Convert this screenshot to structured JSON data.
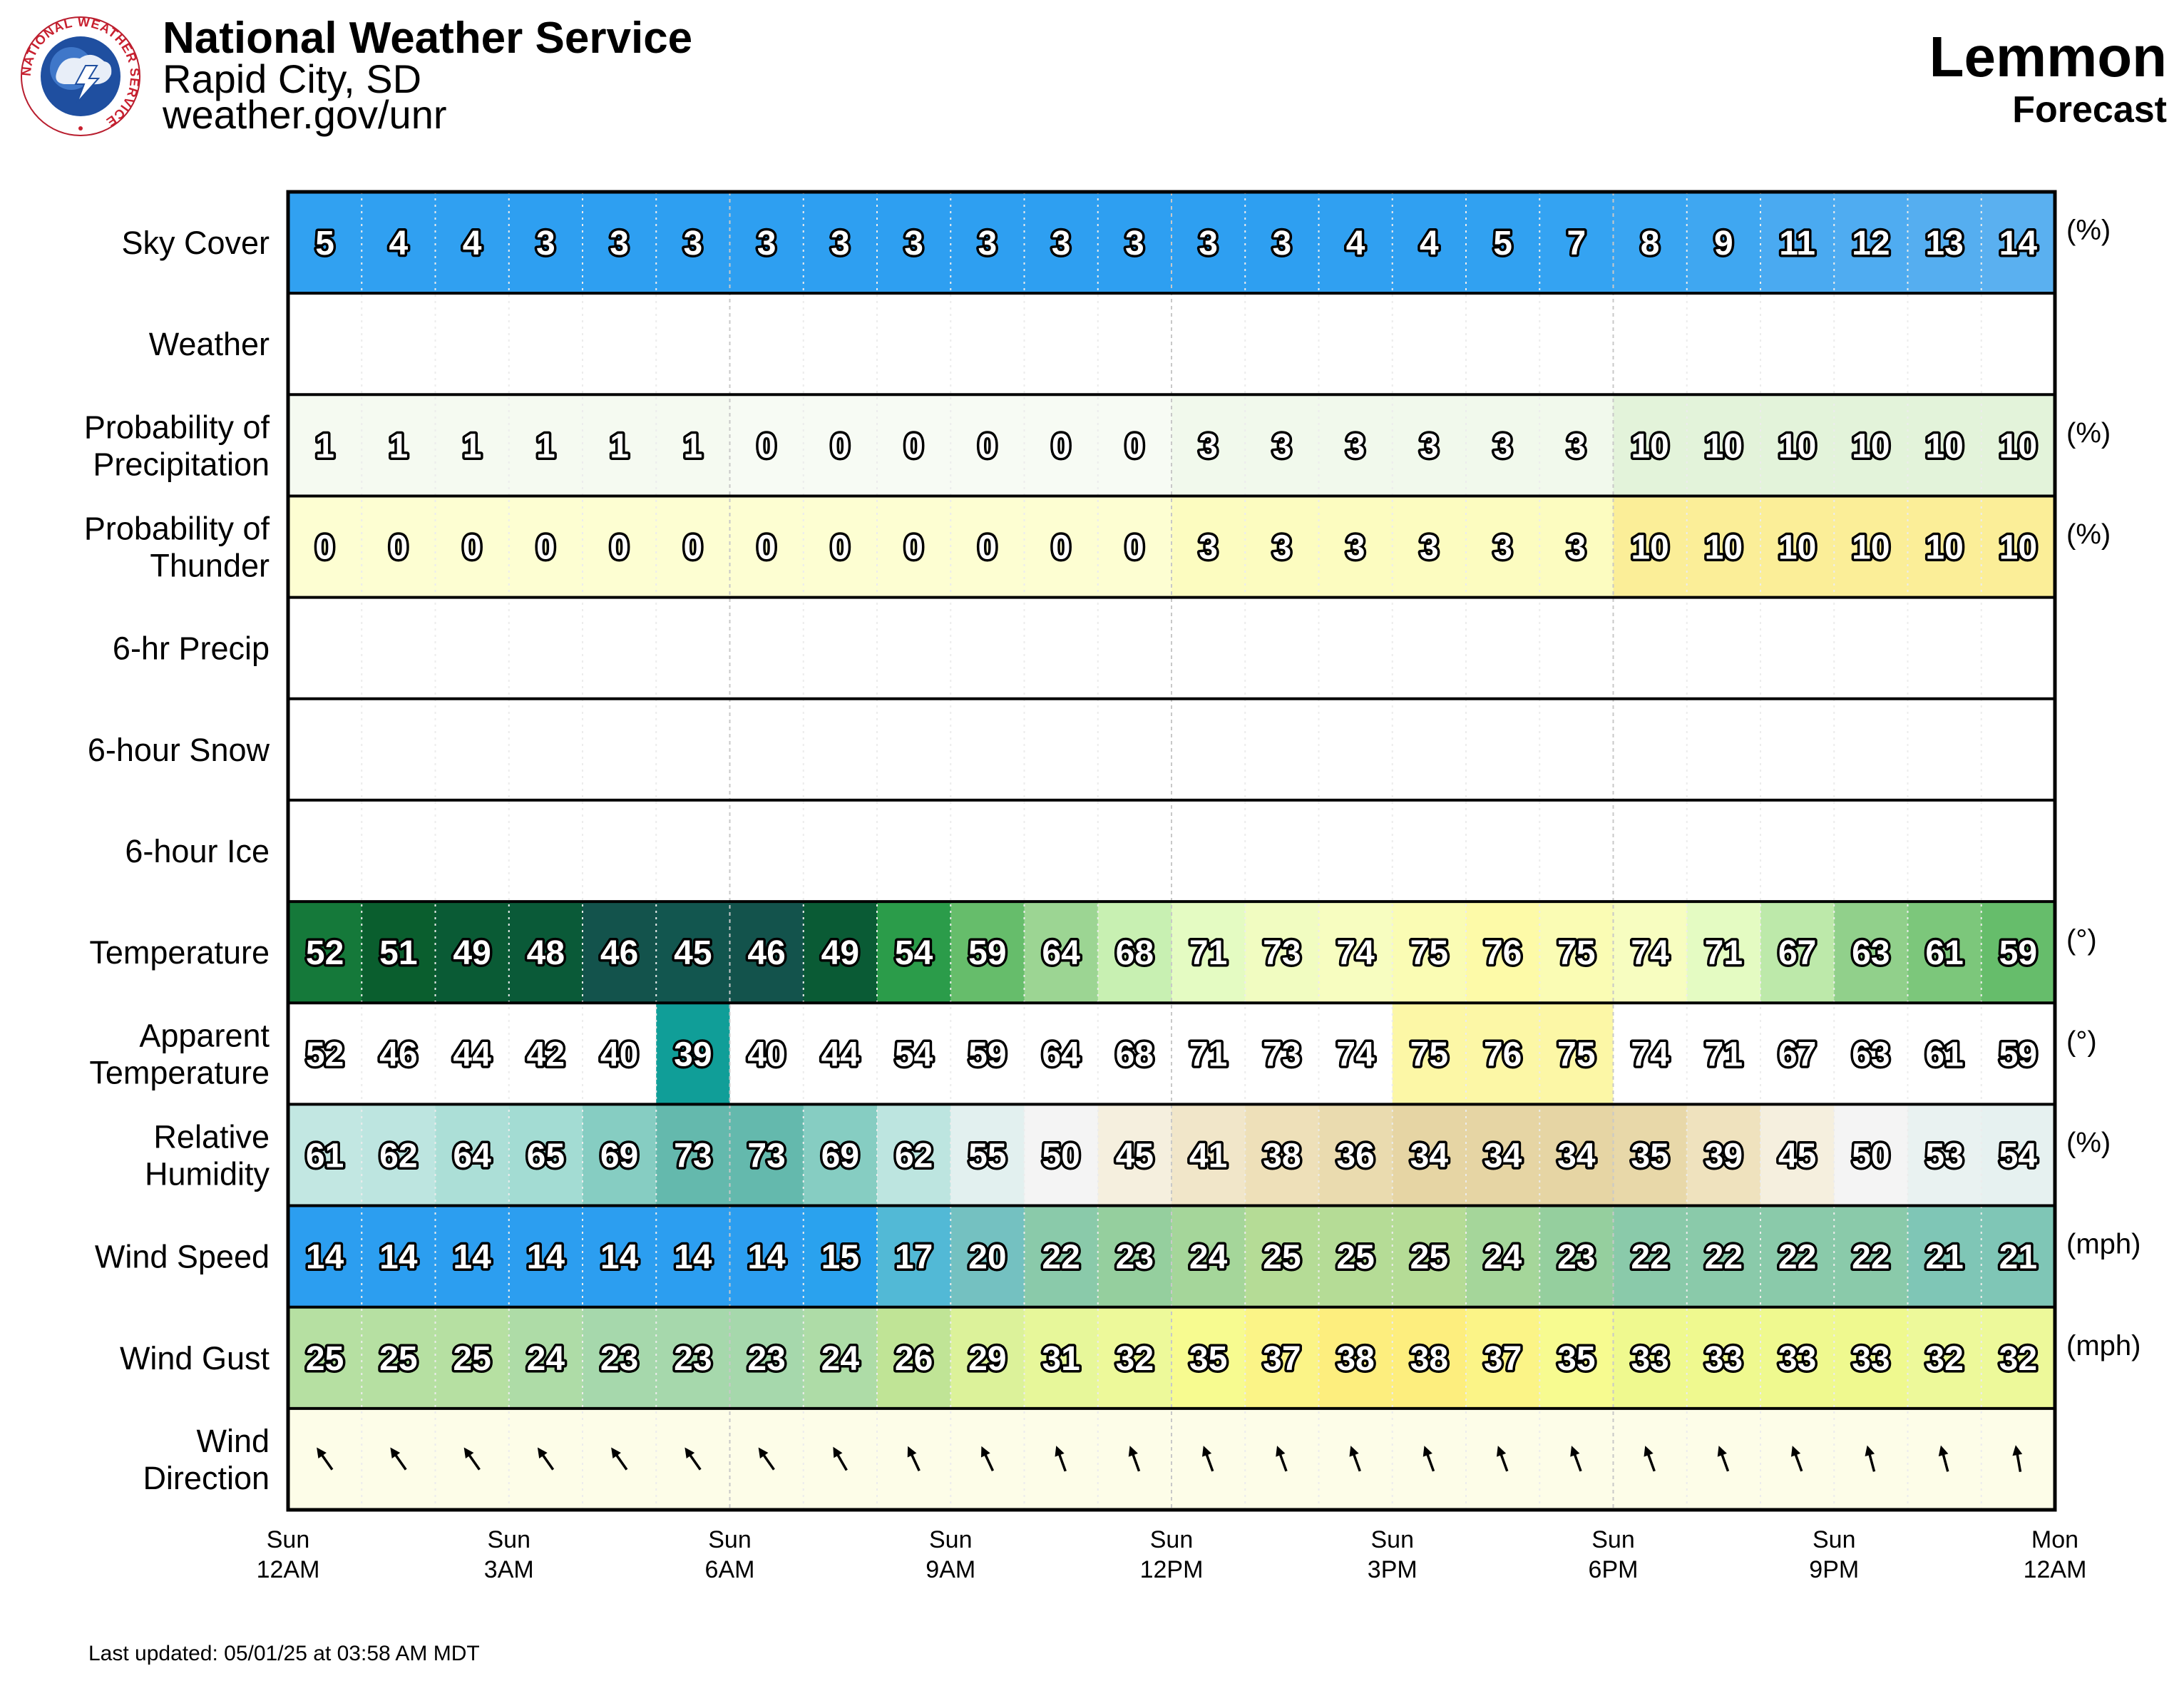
{
  "header": {
    "org_title": "National Weather Service",
    "office": "Rapid City, SD",
    "url": "weather.gov/unr",
    "logo_icon": "nws-logo-icon",
    "logo_text": "NATIONAL WEATHER SERVICE",
    "location": "Lemmon",
    "subtitle": "Forecast"
  },
  "footer": {
    "last_updated": "Last updated: 05/01/25 at 03:58 AM MDT"
  },
  "chart_data": {
    "type": "table",
    "columns": 24,
    "time_labels": [
      {
        "day": "Sun",
        "time": "12AM",
        "col": 0
      },
      {
        "day": "Sun",
        "time": "3AM",
        "col": 3
      },
      {
        "day": "Sun",
        "time": "6AM",
        "col": 6
      },
      {
        "day": "Sun",
        "time": "9AM",
        "col": 9
      },
      {
        "day": "Sun",
        "time": "12PM",
        "col": 12
      },
      {
        "day": "Sun",
        "time": "3PM",
        "col": 15
      },
      {
        "day": "Sun",
        "time": "6PM",
        "col": 18
      },
      {
        "day": "Sun",
        "time": "9PM",
        "col": 21
      },
      {
        "day": "Mon",
        "time": "12AM",
        "col": 24
      }
    ],
    "rows": [
      {
        "label": [
          "Sky Cover"
        ],
        "unit": "(%)",
        "scale": "sky",
        "values": [
          5,
          4,
          4,
          3,
          3,
          3,
          3,
          3,
          3,
          3,
          3,
          3,
          3,
          3,
          4,
          4,
          5,
          7,
          8,
          9,
          11,
          12,
          13,
          14
        ]
      },
      {
        "label": [
          "Weather"
        ],
        "unit": "",
        "scale": "none",
        "values": []
      },
      {
        "label": [
          "Probability of",
          "Precipitation"
        ],
        "unit": "(%)",
        "scale": "pop",
        "values": [
          1,
          1,
          1,
          1,
          1,
          1,
          0,
          0,
          0,
          0,
          0,
          0,
          3,
          3,
          3,
          3,
          3,
          3,
          10,
          10,
          10,
          10,
          10,
          10
        ]
      },
      {
        "label": [
          "Probability of",
          "Thunder"
        ],
        "unit": "(%)",
        "scale": "thunder",
        "values": [
          0,
          0,
          0,
          0,
          0,
          0,
          0,
          0,
          0,
          0,
          0,
          0,
          3,
          3,
          3,
          3,
          3,
          3,
          10,
          10,
          10,
          10,
          10,
          10
        ]
      },
      {
        "label": [
          "6-hr Precip"
        ],
        "unit": "",
        "scale": "none",
        "values": []
      },
      {
        "label": [
          "6-hour Snow"
        ],
        "unit": "",
        "scale": "none",
        "values": []
      },
      {
        "label": [
          "6-hour Ice"
        ],
        "unit": "",
        "scale": "none",
        "values": []
      },
      {
        "label": [
          "Temperature"
        ],
        "unit": "(°)",
        "scale": "temp",
        "values": [
          52,
          51,
          49,
          48,
          46,
          45,
          46,
          49,
          54,
          59,
          64,
          68,
          71,
          73,
          74,
          75,
          76,
          75,
          74,
          71,
          67,
          63,
          61,
          59
        ]
      },
      {
        "label": [
          "Apparent",
          "Temperature"
        ],
        "unit": "(°)",
        "scale": "apparent",
        "values": [
          52,
          46,
          44,
          42,
          40,
          39,
          40,
          44,
          54,
          59,
          64,
          68,
          71,
          73,
          74,
          75,
          76,
          75,
          74,
          71,
          67,
          63,
          61,
          59
        ]
      },
      {
        "label": [
          "Relative",
          "Humidity"
        ],
        "unit": "(%)",
        "scale": "rh",
        "values": [
          61,
          62,
          64,
          65,
          69,
          73,
          73,
          69,
          62,
          55,
          50,
          45,
          41,
          38,
          36,
          34,
          34,
          34,
          35,
          39,
          45,
          50,
          53,
          54
        ]
      },
      {
        "label": [
          "Wind Speed"
        ],
        "unit": "(mph)",
        "scale": "wind",
        "values": [
          14,
          14,
          14,
          14,
          14,
          14,
          14,
          15,
          17,
          20,
          22,
          23,
          24,
          25,
          25,
          25,
          24,
          23,
          22,
          22,
          22,
          22,
          21,
          21
        ]
      },
      {
        "label": [
          "Wind Gust"
        ],
        "unit": "(mph)",
        "scale": "gust",
        "values": [
          25,
          25,
          25,
          24,
          23,
          23,
          23,
          24,
          26,
          29,
          31,
          32,
          35,
          37,
          38,
          38,
          37,
          35,
          33,
          33,
          33,
          33,
          32,
          32
        ]
      },
      {
        "label": [
          "Wind",
          "Direction"
        ],
        "unit": "",
        "scale": "winddir",
        "values": [
          145,
          145,
          145,
          145,
          145,
          145,
          145,
          150,
          155,
          155,
          160,
          160,
          160,
          160,
          160,
          160,
          160,
          160,
          160,
          160,
          160,
          165,
          165,
          170
        ]
      }
    ]
  }
}
